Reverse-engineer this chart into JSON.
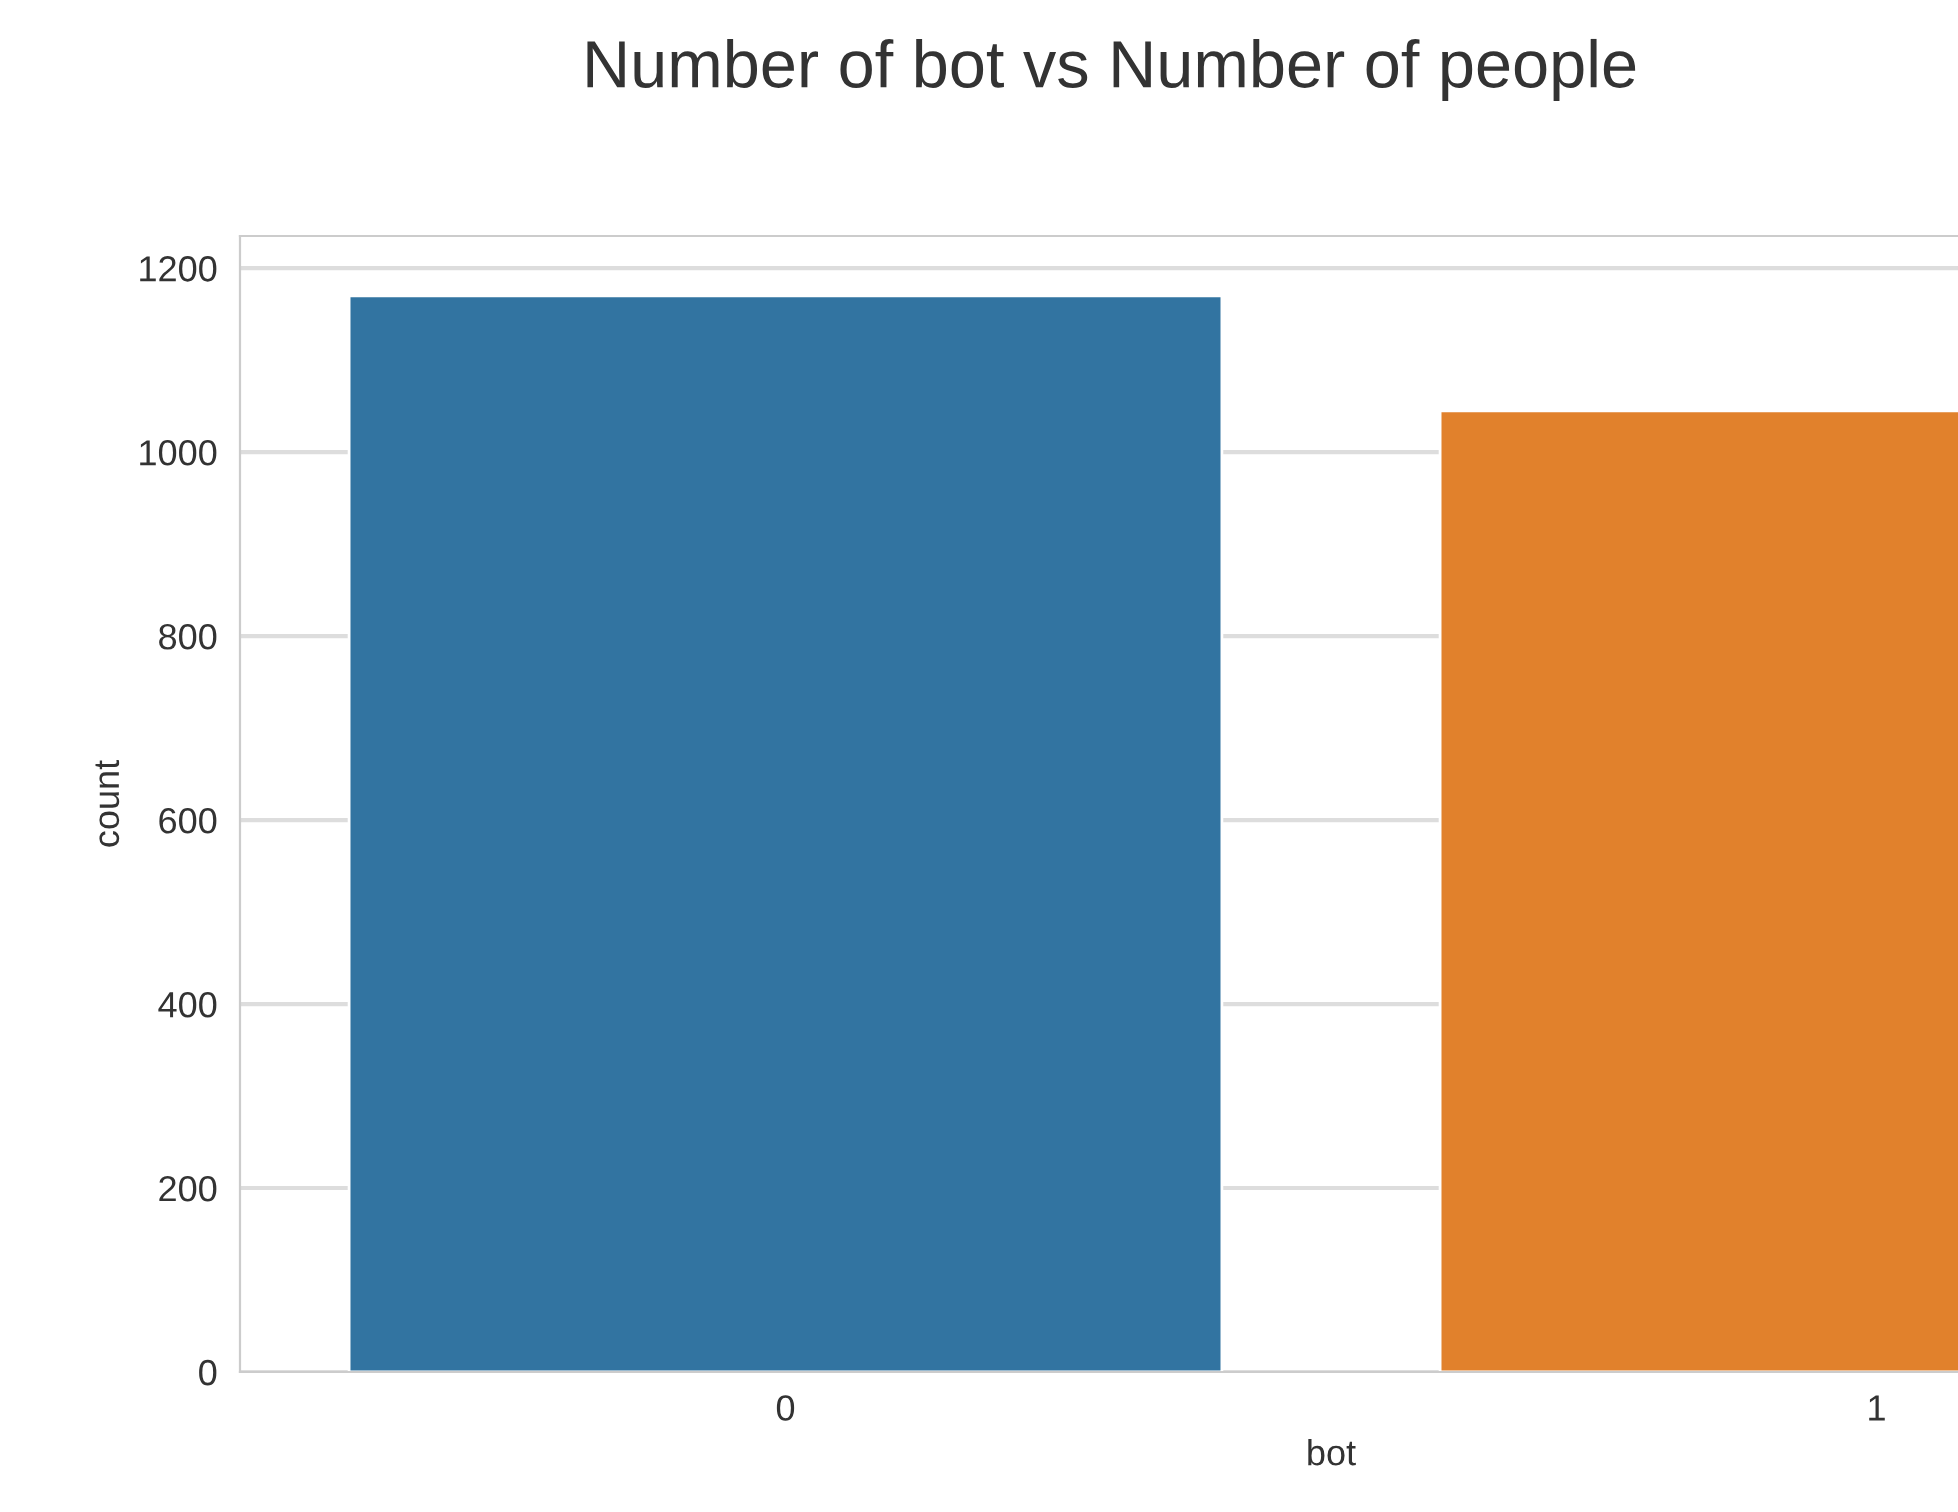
{
  "chart_data": {
    "type": "bar",
    "title": "Number of bot vs Number of people",
    "xlabel": "bot",
    "ylabel": "count",
    "categories": [
      "0",
      "1"
    ],
    "values": [
      1170,
      1045
    ],
    "colors": [
      "#3274a1",
      "#e1812c"
    ],
    "ylim": [
      0,
      1235
    ],
    "yticks": [
      0,
      200,
      400,
      600,
      800,
      1000,
      1200
    ],
    "grid": "y"
  }
}
